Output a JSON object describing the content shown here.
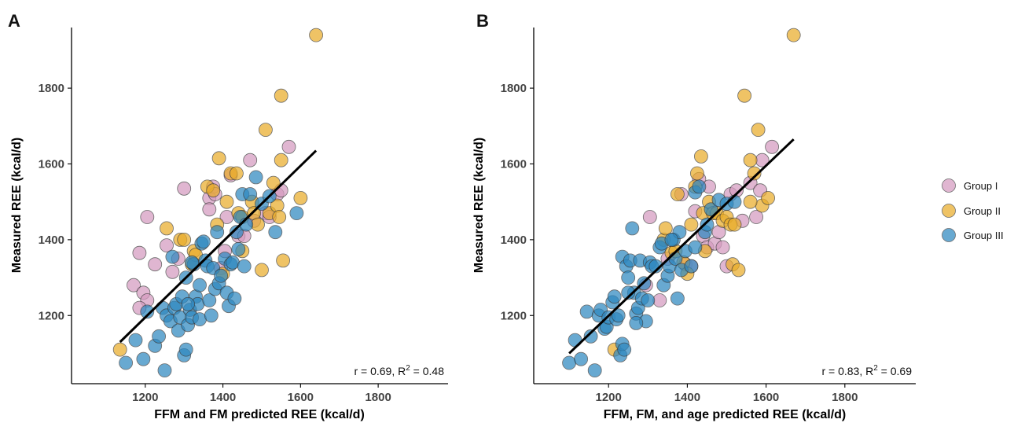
{
  "colors": {
    "Group I": "#d59bc0",
    "Group II": "#e9ac2a",
    "Group III": "#2f88c0"
  },
  "legend": {
    "placement": "right",
    "items": [
      "Group I",
      "Group II",
      "Group III"
    ]
  },
  "chart_data": [
    {
      "type": "scatter",
      "panel": "A",
      "xlabel": "FFM and FM predicted REE (kcal/d)",
      "ylabel": "Measured REE (kcal/d)",
      "xlim": [
        1010,
        1980
      ],
      "ylim": [
        1020,
        1960
      ],
      "xticks": [
        1200,
        1400,
        1600,
        1800
      ],
      "yticks": [
        1200,
        1400,
        1600,
        1800
      ],
      "annotation": {
        "r": "r = 0.69, R",
        "sup": "2",
        "rest": " = 0.48"
      },
      "fit_line": {
        "x": [
          1135,
          1640
        ],
        "y": [
          1130,
          1635
        ]
      },
      "series": [
        {
          "name": "Group I",
          "points": [
            [
              1170,
              1280
            ],
            [
              1195,
              1260
            ],
            [
              1205,
              1240
            ],
            [
              1185,
              1220
            ],
            [
              1205,
              1460
            ],
            [
              1185,
              1365
            ],
            [
              1225,
              1335
            ],
            [
              1255,
              1385
            ],
            [
              1270,
              1315
            ],
            [
              1300,
              1535
            ],
            [
              1285,
              1350
            ],
            [
              1365,
              1510
            ],
            [
              1375,
              1540
            ],
            [
              1380,
              1520
            ],
            [
              1395,
              1325
            ],
            [
              1405,
              1370
            ],
            [
              1410,
              1460
            ],
            [
              1420,
              1570
            ],
            [
              1440,
              1410
            ],
            [
              1455,
              1410
            ],
            [
              1470,
              1610
            ],
            [
              1480,
              1450
            ],
            [
              1510,
              1470
            ],
            [
              1520,
              1460
            ],
            [
              1540,
              1520
            ],
            [
              1550,
              1530
            ],
            [
              1570,
              1645
            ],
            [
              1365,
              1480
            ]
          ]
        },
        {
          "name": "Group II",
          "points": [
            [
              1135,
              1110
            ],
            [
              1255,
              1430
            ],
            [
              1290,
              1400
            ],
            [
              1300,
              1400
            ],
            [
              1320,
              1335
            ],
            [
              1325,
              1370
            ],
            [
              1360,
              1540
            ],
            [
              1375,
              1530
            ],
            [
              1385,
              1440
            ],
            [
              1390,
              1615
            ],
            [
              1400,
              1310
            ],
            [
              1410,
              1500
            ],
            [
              1420,
              1575
            ],
            [
              1435,
              1575
            ],
            [
              1440,
              1470
            ],
            [
              1450,
              1370
            ],
            [
              1450,
              1460
            ],
            [
              1475,
              1500
            ],
            [
              1480,
              1470
            ],
            [
              1490,
              1440
            ],
            [
              1500,
              1320
            ],
            [
              1510,
              1690
            ],
            [
              1520,
              1470
            ],
            [
              1530,
              1550
            ],
            [
              1540,
              1490
            ],
            [
              1545,
              1460
            ],
            [
              1550,
              1610
            ],
            [
              1550,
              1780
            ],
            [
              1555,
              1345
            ],
            [
              1600,
              1510
            ],
            [
              1640,
              1940
            ],
            [
              1330,
              1360
            ]
          ]
        },
        {
          "name": "Group III",
          "points": [
            [
              1150,
              1075
            ],
            [
              1175,
              1135
            ],
            [
              1195,
              1085
            ],
            [
              1205,
              1210
            ],
            [
              1225,
              1120
            ],
            [
              1235,
              1145
            ],
            [
              1245,
              1220
            ],
            [
              1250,
              1055
            ],
            [
              1255,
              1200
            ],
            [
              1265,
              1185
            ],
            [
              1270,
              1355
            ],
            [
              1275,
              1220
            ],
            [
              1280,
              1230
            ],
            [
              1285,
              1160
            ],
            [
              1290,
              1195
            ],
            [
              1295,
              1250
            ],
            [
              1300,
              1095
            ],
            [
              1305,
              1110
            ],
            [
              1305,
              1300
            ],
            [
              1310,
              1175
            ],
            [
              1315,
              1215
            ],
            [
              1320,
              1195
            ],
            [
              1325,
              1335
            ],
            [
              1330,
              1250
            ],
            [
              1335,
              1230
            ],
            [
              1340,
              1190
            ],
            [
              1345,
              1390
            ],
            [
              1350,
              1395
            ],
            [
              1355,
              1345
            ],
            [
              1360,
              1330
            ],
            [
              1365,
              1240
            ],
            [
              1370,
              1200
            ],
            [
              1375,
              1325
            ],
            [
              1380,
              1270
            ],
            [
              1385,
              1420
            ],
            [
              1390,
              1285
            ],
            [
              1395,
              1305
            ],
            [
              1405,
              1350
            ],
            [
              1410,
              1260
            ],
            [
              1415,
              1225
            ],
            [
              1420,
              1335
            ],
            [
              1425,
              1340
            ],
            [
              1430,
              1245
            ],
            [
              1435,
              1420
            ],
            [
              1440,
              1375
            ],
            [
              1445,
              1460
            ],
            [
              1450,
              1520
            ],
            [
              1455,
              1330
            ],
            [
              1460,
              1440
            ],
            [
              1470,
              1520
            ],
            [
              1485,
              1565
            ],
            [
              1500,
              1495
            ],
            [
              1520,
              1515
            ],
            [
              1535,
              1420
            ],
            [
              1590,
              1470
            ],
            [
              1320,
              1340
            ],
            [
              1340,
              1280
            ],
            [
              1310,
              1230
            ]
          ]
        }
      ]
    },
    {
      "type": "scatter",
      "panel": "B",
      "xlabel": "FFM, FM, and age predicted REE (kcal/d)",
      "ylabel": "Measured REE (kcal/d)",
      "xlim": [
        1010,
        1980
      ],
      "ylim": [
        1020,
        1960
      ],
      "xticks": [
        1200,
        1400,
        1600,
        1800
      ],
      "yticks": [
        1200,
        1400,
        1600,
        1800
      ],
      "annotation": {
        "r": "r = 0.83, R",
        "sup": "2",
        "rest": " = 0.69"
      },
      "fit_line": {
        "x": [
          1100,
          1670
        ],
        "y": [
          1100,
          1665
        ]
      },
      "series": [
        {
          "name": "Group I",
          "points": [
            [
              1295,
              1280
            ],
            [
              1305,
              1460
            ],
            [
              1330,
              1240
            ],
            [
              1350,
              1350
            ],
            [
              1385,
              1520
            ],
            [
              1395,
              1335
            ],
            [
              1410,
              1330
            ],
            [
              1420,
              1475
            ],
            [
              1430,
              1560
            ],
            [
              1440,
              1410
            ],
            [
              1450,
              1380
            ],
            [
              1455,
              1540
            ],
            [
              1470,
              1390
            ],
            [
              1480,
              1420
            ],
            [
              1490,
              1380
            ],
            [
              1500,
              1330
            ],
            [
              1510,
              1520
            ],
            [
              1525,
              1530
            ],
            [
              1540,
              1450
            ],
            [
              1560,
              1550
            ],
            [
              1575,
              1460
            ],
            [
              1585,
              1530
            ],
            [
              1590,
              1610
            ],
            [
              1615,
              1645
            ]
          ]
        },
        {
          "name": "Group II",
          "points": [
            [
              1215,
              1110
            ],
            [
              1340,
              1400
            ],
            [
              1345,
              1430
            ],
            [
              1360,
              1365
            ],
            [
              1370,
              1370
            ],
            [
              1375,
              1520
            ],
            [
              1390,
              1340
            ],
            [
              1400,
              1310
            ],
            [
              1410,
              1440
            ],
            [
              1420,
              1540
            ],
            [
              1425,
              1575
            ],
            [
              1435,
              1620
            ],
            [
              1440,
              1470
            ],
            [
              1445,
              1370
            ],
            [
              1455,
              1500
            ],
            [
              1465,
              1470
            ],
            [
              1475,
              1470
            ],
            [
              1490,
              1450
            ],
            [
              1500,
              1460
            ],
            [
              1510,
              1440
            ],
            [
              1515,
              1335
            ],
            [
              1520,
              1440
            ],
            [
              1530,
              1320
            ],
            [
              1545,
              1780
            ],
            [
              1560,
              1610
            ],
            [
              1570,
              1575
            ],
            [
              1580,
              1690
            ],
            [
              1590,
              1490
            ],
            [
              1605,
              1510
            ],
            [
              1670,
              1940
            ],
            [
              1560,
              1500
            ]
          ]
        },
        {
          "name": "Group III",
          "points": [
            [
              1100,
              1075
            ],
            [
              1115,
              1135
            ],
            [
              1130,
              1085
            ],
            [
              1145,
              1210
            ],
            [
              1155,
              1145
            ],
            [
              1165,
              1055
            ],
            [
              1175,
              1200
            ],
            [
              1180,
              1215
            ],
            [
              1190,
              1165
            ],
            [
              1195,
              1170
            ],
            [
              1200,
              1195
            ],
            [
              1210,
              1235
            ],
            [
              1215,
              1250
            ],
            [
              1220,
              1190
            ],
            [
              1225,
              1200
            ],
            [
              1230,
              1095
            ],
            [
              1235,
              1125
            ],
            [
              1235,
              1355
            ],
            [
              1240,
              1110
            ],
            [
              1245,
              1330
            ],
            [
              1250,
              1300
            ],
            [
              1255,
              1345
            ],
            [
              1260,
              1430
            ],
            [
              1265,
              1260
            ],
            [
              1270,
              1205
            ],
            [
              1275,
              1220
            ],
            [
              1280,
              1345
            ],
            [
              1285,
              1245
            ],
            [
              1290,
              1285
            ],
            [
              1295,
              1185
            ],
            [
              1300,
              1240
            ],
            [
              1305,
              1340
            ],
            [
              1310,
              1330
            ],
            [
              1320,
              1330
            ],
            [
              1330,
              1380
            ],
            [
              1335,
              1390
            ],
            [
              1340,
              1280
            ],
            [
              1350,
              1305
            ],
            [
              1355,
              1330
            ],
            [
              1365,
              1400
            ],
            [
              1370,
              1350
            ],
            [
              1375,
              1245
            ],
            [
              1380,
              1420
            ],
            [
              1385,
              1320
            ],
            [
              1395,
              1370
            ],
            [
              1410,
              1330
            ],
            [
              1420,
              1525
            ],
            [
              1430,
              1540
            ],
            [
              1445,
              1420
            ],
            [
              1450,
              1440
            ],
            [
              1460,
              1480
            ],
            [
              1480,
              1505
            ],
            [
              1500,
              1495
            ],
            [
              1520,
              1500
            ],
            [
              1270,
              1180
            ],
            [
              1360,
              1400
            ],
            [
              1420,
              1380
            ],
            [
              1250,
              1260
            ]
          ]
        }
      ]
    }
  ]
}
